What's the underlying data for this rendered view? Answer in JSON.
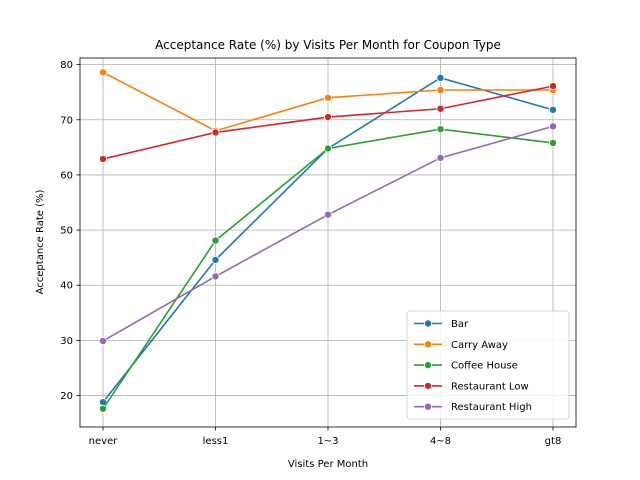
{
  "chart_data": {
    "type": "line",
    "title": "Acceptance Rate (%) by Visits Per Month for Coupon Type",
    "xlabel": "Visits Per Month",
    "ylabel": "Acceptance Rate (%)",
    "categories": [
      "never",
      "less1",
      "1~3",
      "4~8",
      "gt8"
    ],
    "ylim": [
      14.3,
      81.2
    ],
    "yticks": [
      20,
      30,
      40,
      50,
      60,
      70,
      80
    ],
    "grid": true,
    "legend_position": "lower-right",
    "series": [
      {
        "name": "Bar",
        "color": "#1f77b4",
        "values": [
          18.8,
          44.6,
          64.8,
          77.6,
          71.8
        ]
      },
      {
        "name": "Carry Away",
        "color": "#ff7f0e",
        "values": [
          78.6,
          68.0,
          74.0,
          75.4,
          75.4
        ]
      },
      {
        "name": "Coffee House",
        "color": "#2ca02c",
        "values": [
          17.6,
          48.1,
          64.8,
          68.3,
          65.8
        ]
      },
      {
        "name": "Restaurant Low",
        "color": "#d62728",
        "values": [
          62.9,
          67.7,
          70.5,
          72.0,
          76.1
        ]
      },
      {
        "name": "Restaurant High",
        "color": "#9467bd",
        "values": [
          29.9,
          41.6,
          52.8,
          63.1,
          68.8
        ]
      }
    ]
  }
}
